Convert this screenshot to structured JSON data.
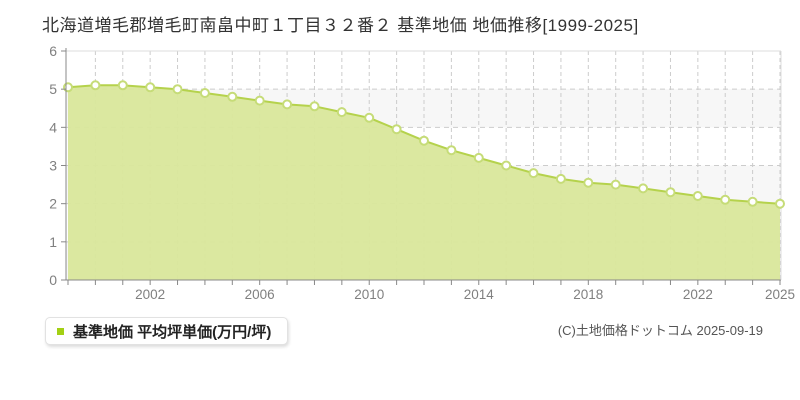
{
  "title": "北海道増毛郡増毛町南畠中町１丁目３２番２ 基準地価 地価推移[1999-2025]",
  "legend": {
    "label": "基準地価 平均坪単価(万円/坪)",
    "swatch_color": "#a3d014"
  },
  "copyright": "(C)土地価格ドットコム 2025-09-19",
  "chart_data": {
    "type": "area",
    "title": "基準地価 地価推移",
    "ylabel": "平均坪単価(万円/坪)",
    "xlabel": "",
    "x": [
      1999,
      2000,
      2001,
      2002,
      2003,
      2004,
      2005,
      2006,
      2007,
      2008,
      2009,
      2010,
      2011,
      2012,
      2013,
      2014,
      2015,
      2016,
      2017,
      2018,
      2019,
      2020,
      2021,
      2022,
      2023,
      2024,
      2025
    ],
    "series": [
      {
        "name": "基準地価 平均坪単価(万円/坪)",
        "values": [
          5.05,
          5.1,
          5.1,
          5.05,
          5.0,
          4.9,
          4.8,
          4.7,
          4.6,
          4.55,
          4.4,
          4.25,
          3.95,
          3.65,
          3.4,
          3.2,
          3.0,
          2.8,
          2.65,
          2.55,
          2.5,
          2.4,
          2.3,
          2.2,
          2.1,
          2.05,
          2.0
        ]
      }
    ],
    "ylim": [
      0,
      6
    ],
    "yticks": [
      0,
      1,
      2,
      3,
      4,
      5,
      6
    ],
    "xtick_labels": [
      "2002",
      "2006",
      "2010",
      "2014",
      "2018",
      "2022",
      "2025"
    ],
    "grid": true,
    "grid_style": "dashed",
    "legend_position": "bottom-left",
    "colors": {
      "area_fill": "#d9e79b",
      "line": "#b5d24c",
      "marker_fill": "#ffffff",
      "marker_stroke": "#c6dc78",
      "grid": "#cccccc",
      "band": "#f7f7f7",
      "plot_border": "#dddddd",
      "axis": "#888888",
      "tick_text": "#808080"
    }
  }
}
